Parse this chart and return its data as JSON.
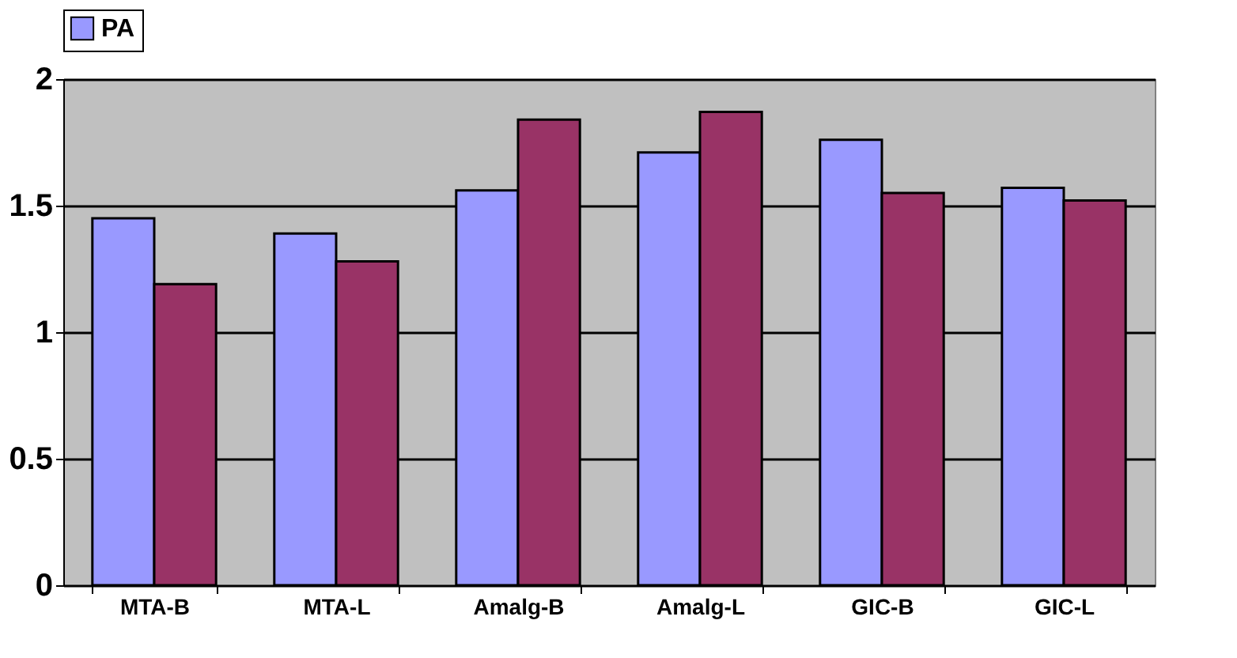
{
  "chart_data": {
    "type": "bar",
    "categories": [
      "MTA-B",
      "MTA-L",
      "Amalg-B",
      "Amalg-L",
      "GIC-B",
      "GIC-L"
    ],
    "series": [
      {
        "name": "PA",
        "color": "#9999ff",
        "values": [
          1.45,
          1.39,
          1.56,
          1.71,
          1.76,
          1.57
        ]
      },
      {
        "color": "#993366",
        "values": [
          1.19,
          1.28,
          1.84,
          1.87,
          1.55,
          1.52
        ]
      }
    ],
    "ylim": [
      0,
      2
    ],
    "yticks": [
      0,
      0.5,
      1,
      1.5,
      2
    ],
    "grid": "y",
    "legend": "top"
  }
}
